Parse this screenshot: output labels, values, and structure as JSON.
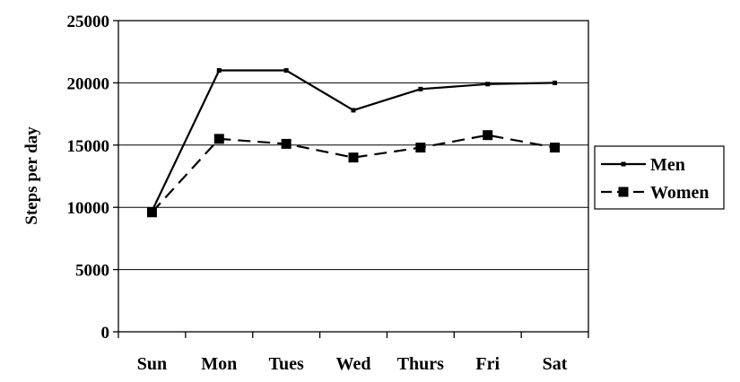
{
  "chart_data": {
    "type": "line",
    "categories": [
      "Sun",
      "Mon",
      "Tues",
      "Wed",
      "Thurs",
      "Fri",
      "Sat"
    ],
    "series": [
      {
        "name": "Men",
        "values": [
          9700,
          21000,
          21000,
          17800,
          19500,
          19900,
          20000
        ],
        "line_style": "solid",
        "marker": "small-square"
      },
      {
        "name": "Women",
        "values": [
          9600,
          15500,
          15100,
          14000,
          14800,
          15800,
          14800
        ],
        "line_style": "dashed",
        "marker": "large-square"
      }
    ],
    "title": "",
    "xlabel": "",
    "ylabel": "Steps per day",
    "ylim": [
      0,
      25000
    ],
    "yticks": [
      0,
      5000,
      10000,
      15000,
      20000,
      25000
    ],
    "grid": "horizontal",
    "legend": "right",
    "colors": {
      "line": "#000000",
      "grid": "#000000",
      "background": "#ffffff"
    }
  }
}
